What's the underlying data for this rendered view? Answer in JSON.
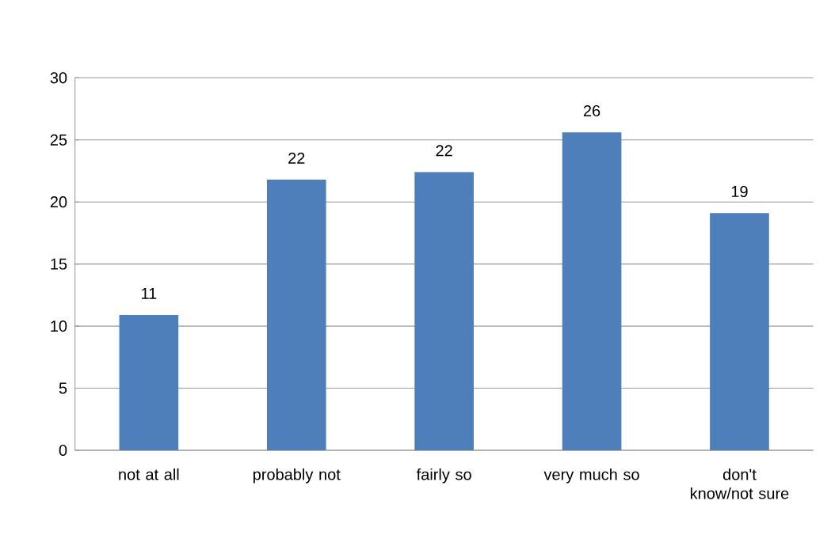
{
  "chart_data": {
    "type": "bar",
    "categories": [
      "not at all",
      "probably not",
      "fairly so",
      "very much so",
      "don't know/not sure"
    ],
    "values": [
      10.9,
      21.8,
      22.4,
      25.6,
      19.1
    ],
    "value_labels": [
      "11",
      "22",
      "22",
      "26",
      "19"
    ],
    "color": "#4f7fba",
    "ylim": [
      0,
      30
    ],
    "yticks": [
      0,
      5,
      10,
      15,
      20,
      25,
      30
    ],
    "grid": "y"
  }
}
